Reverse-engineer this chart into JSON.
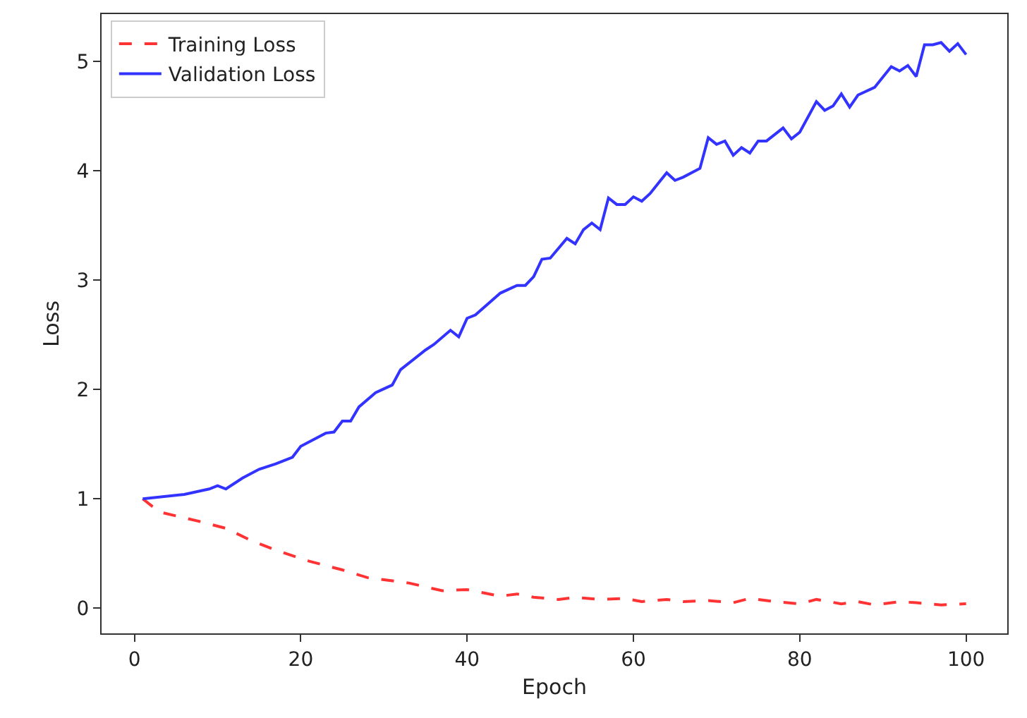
{
  "chart_data": {
    "type": "line",
    "xlabel": "Epoch",
    "ylabel": "Loss",
    "xlim": [
      -3.95,
      104.95
    ],
    "xticks": [
      0,
      20,
      40,
      60,
      80,
      100
    ],
    "ylim": [
      -0.23,
      5.43
    ],
    "yticks": [
      0,
      1,
      2,
      3,
      4,
      5
    ],
    "legend": "top left",
    "marker": "none",
    "series": [
      {
        "name": "Training Loss",
        "color": "#ff3333",
        "line_style": "dashed",
        "x": [
          1,
          3,
          8,
          11,
          14,
          17,
          21,
          25,
          28,
          33,
          37,
          40,
          44,
          46,
          48,
          51,
          53,
          56,
          59,
          61,
          64,
          66,
          69,
          72,
          74,
          77,
          80,
          82,
          85,
          87,
          89,
          92,
          94,
          97,
          100
        ],
        "values": [
          1.0,
          0.88,
          0.79,
          0.73,
          0.62,
          0.53,
          0.43,
          0.35,
          0.28,
          0.23,
          0.16,
          0.17,
          0.11,
          0.13,
          0.1,
          0.08,
          0.1,
          0.08,
          0.09,
          0.06,
          0.08,
          0.06,
          0.07,
          0.05,
          0.09,
          0.06,
          0.04,
          0.08,
          0.04,
          0.06,
          0.03,
          0.06,
          0.05,
          0.03,
          0.04
        ]
      },
      {
        "name": "Validation Loss",
        "color": "#3333ff",
        "line_style": "solid",
        "x": [
          1,
          6,
          9,
          10,
          11,
          13,
          15,
          17,
          19,
          20,
          23,
          24,
          25,
          26,
          27,
          29,
          31,
          32,
          35,
          36,
          38,
          39,
          40,
          41,
          44,
          46,
          47,
          48,
          49,
          50,
          52,
          53,
          54,
          55,
          56,
          57,
          58,
          59,
          60,
          61,
          62,
          64,
          65,
          66,
          68,
          69,
          70,
          71,
          72,
          73,
          74,
          75,
          76,
          78,
          79,
          80,
          82,
          83,
          84,
          85,
          86,
          87,
          89,
          91,
          92,
          93,
          94,
          95,
          96,
          97,
          98,
          99,
          100
        ],
        "values": [
          1.0,
          1.04,
          1.09,
          1.12,
          1.09,
          1.19,
          1.27,
          1.32,
          1.38,
          1.48,
          1.6,
          1.61,
          1.71,
          1.71,
          1.84,
          1.97,
          2.04,
          2.18,
          2.36,
          2.41,
          2.54,
          2.48,
          2.65,
          2.68,
          2.88,
          2.95,
          2.95,
          3.03,
          3.19,
          3.2,
          3.38,
          3.33,
          3.46,
          3.52,
          3.46,
          3.75,
          3.69,
          3.69,
          3.76,
          3.72,
          3.79,
          3.98,
          3.91,
          3.94,
          4.02,
          4.3,
          4.24,
          4.27,
          4.14,
          4.21,
          4.16,
          4.27,
          4.27,
          4.39,
          4.29,
          4.35,
          4.63,
          4.55,
          4.59,
          4.7,
          4.58,
          4.69,
          4.76,
          4.95,
          4.91,
          4.96,
          4.86,
          5.15,
          5.15,
          5.17,
          5.09,
          5.16,
          5.06
        ]
      }
    ]
  }
}
